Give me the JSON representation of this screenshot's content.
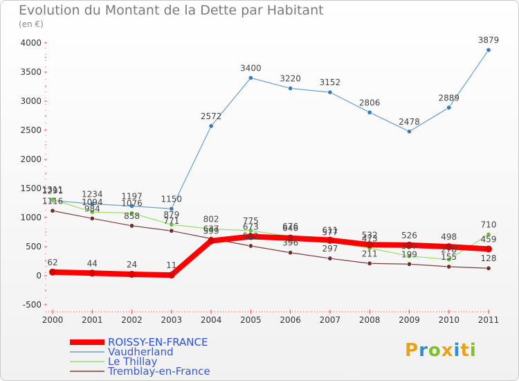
{
  "header": {
    "title": "Evolution du Montant de la Dette par Habitant",
    "subtitle": "(en €)"
  },
  "logo": {
    "text": "Proxiti",
    "colors": [
      "#e8a21a",
      "#2b8fd1",
      "#7fbf2a",
      "#e8a21a",
      "#2b8fd1",
      "#e8a21a",
      "#7fbf2a"
    ]
  },
  "chart_data": {
    "type": "line",
    "title": "Evolution du Montant de la Dette par Habitant",
    "ylabel": "(en €)",
    "xlabel": "",
    "categories": [
      "2000",
      "2001",
      "2002",
      "2003",
      "2004",
      "2005",
      "2006",
      "2007",
      "2008",
      "2009",
      "2010",
      "2011"
    ],
    "ylim": [
      -500,
      4000
    ],
    "yticks": [
      -500,
      0,
      500,
      1000,
      1500,
      2000,
      2500,
      3000,
      3500,
      4000
    ],
    "grid": false,
    "legend": "bottom-left",
    "series": [
      {
        "name": "Vaudherland",
        "color": "#6a9cc9",
        "width": 1.2,
        "values": [
          1291,
          1234,
          1197,
          1150,
          2572,
          3400,
          3220,
          3152,
          2806,
          2478,
          2889,
          3879
        ]
      },
      {
        "name": "Le Thillay",
        "color": "#99dd66",
        "width": 1.2,
        "values": [
          1311,
          1094,
          1076,
          879,
          802,
          775,
          676,
          577,
          473,
          337,
          278,
          710
        ]
      },
      {
        "name": "Tremblay-en-France",
        "color": "#7a3a3a",
        "width": 1.2,
        "values": [
          1116,
          984,
          858,
          771,
          637,
          512,
          396,
          297,
          211,
          199,
          155,
          128
        ]
      },
      {
        "name": "ROISSY-EN-FRANCE",
        "color": "#ff0000",
        "width": 8,
        "values": [
          62,
          44,
          24,
          11,
          599,
          673,
          646,
          611,
          532,
          526,
          498,
          459
        ]
      }
    ],
    "legend_order": [
      "ROISSY-EN-FRANCE",
      "Vaudherland",
      "Le Thillay",
      "Tremblay-en-France"
    ]
  }
}
